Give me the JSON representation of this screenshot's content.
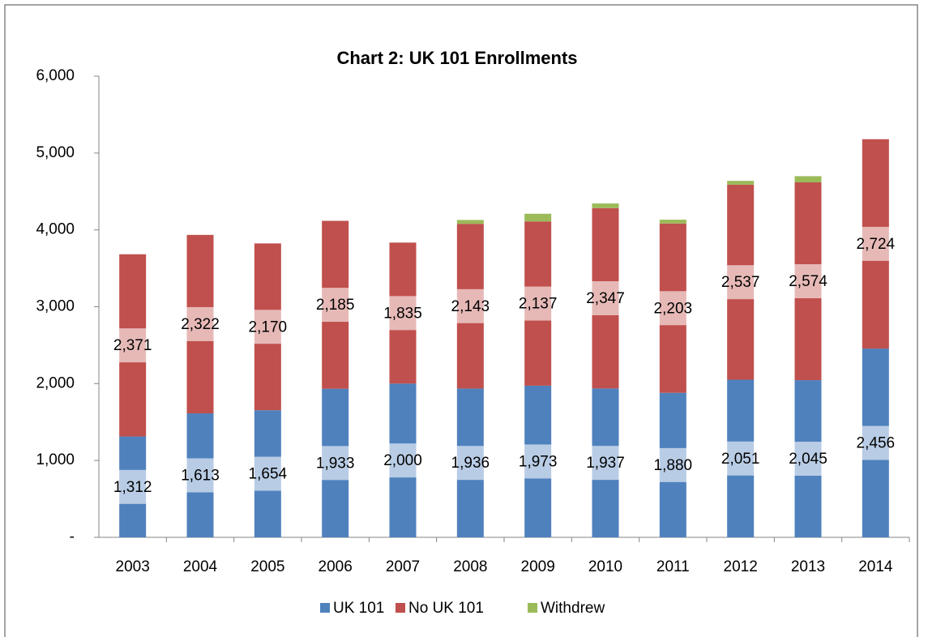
{
  "chart_data": {
    "type": "stacked-bar",
    "title": "Chart 2: UK 101 Enrollments",
    "categories": [
      "2003",
      "2004",
      "2005",
      "2006",
      "2007",
      "2008",
      "2009",
      "2010",
      "2011",
      "2012",
      "2013",
      "2014"
    ],
    "series": [
      {
        "name": "UK 101",
        "color": "#4f81bd",
        "values": [
          1312,
          1613,
          1654,
          1933,
          2000,
          1936,
          1973,
          1937,
          1880,
          2051,
          2045,
          2456
        ],
        "value_labels": [
          "1,312",
          "1,613",
          "1,654",
          "1,933",
          "2,000",
          "1,936",
          "1,973",
          "1,937",
          "1,880",
          "2,051",
          "2,045",
          "2,456"
        ]
      },
      {
        "name": "No UK 101",
        "color": "#c0504d",
        "values": [
          2371,
          2322,
          2170,
          2185,
          1835,
          2143,
          2137,
          2347,
          2203,
          2537,
          2574,
          2724
        ],
        "value_labels": [
          "2,371",
          "2,322",
          "2,170",
          "2,185",
          "1,835",
          "2,143",
          "2,137",
          "2,347",
          "2,203",
          "2,537",
          "2,574",
          "2,724"
        ]
      },
      {
        "name": "Withdrew",
        "color": "#9bbb59",
        "values": [
          0,
          0,
          0,
          0,
          0,
          50,
          100,
          60,
          50,
          50,
          80,
          0
        ]
      }
    ],
    "ylim": [
      0,
      6000
    ],
    "yticks": [
      {
        "value": 0,
        "label": "-"
      },
      {
        "value": 1000,
        "label": "1,000"
      },
      {
        "value": 2000,
        "label": "2,000"
      },
      {
        "value": 3000,
        "label": "3,000"
      },
      {
        "value": 4000,
        "label": "4,000"
      },
      {
        "value": 5000,
        "label": "5,000"
      },
      {
        "value": 6000,
        "label": "6,000"
      }
    ],
    "grid": false,
    "legend": "bottom"
  }
}
